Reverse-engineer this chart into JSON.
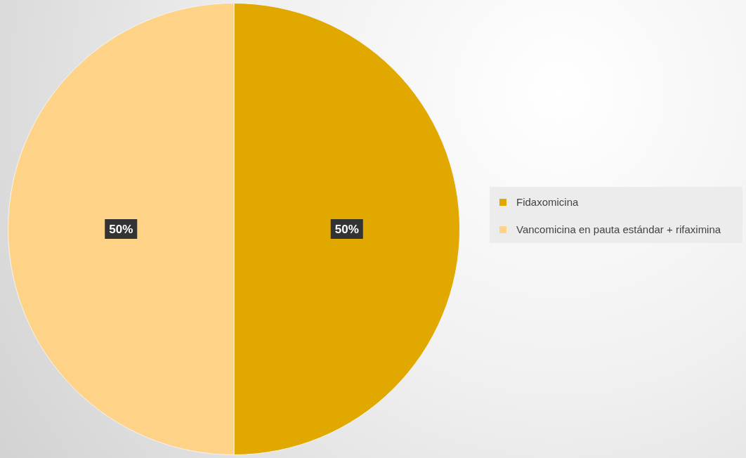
{
  "chart_data": {
    "type": "pie",
    "categories": [
      "Fidaxomicina",
      "Vancomicina en pauta estándar + rifaximina"
    ],
    "values": [
      50,
      50
    ],
    "value_labels": [
      "50%",
      "50%"
    ],
    "colors": [
      "#e1a900",
      "#fed388"
    ],
    "legend": "right"
  }
}
